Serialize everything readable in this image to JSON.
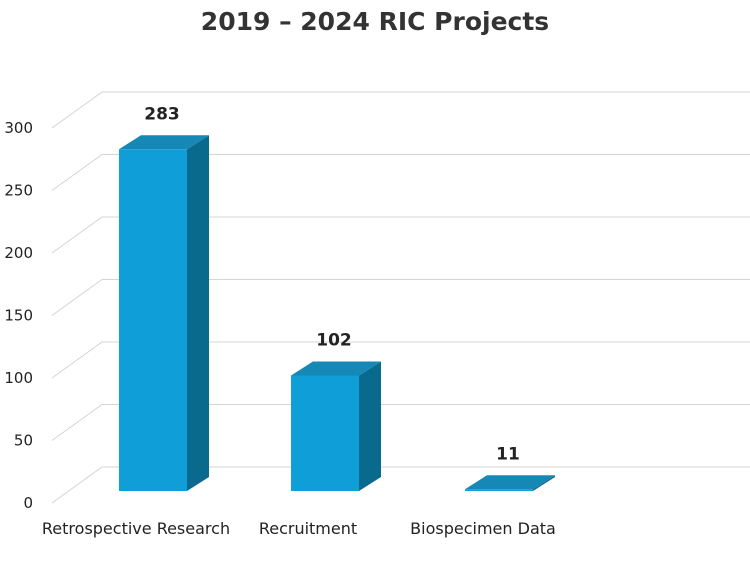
{
  "chart_data": {
    "type": "bar",
    "title": "2019 – 2024 RIC Projects",
    "categories": [
      "Retrospective Research",
      "Recruitment",
      "Biospecimen Data"
    ],
    "values": [
      283,
      102,
      11
    ],
    "data_labels": [
      "283",
      "102",
      "11"
    ],
    "ylim": [
      0,
      300
    ],
    "yticks": [
      "0",
      "50",
      "100",
      "150",
      "200",
      "250",
      "300"
    ],
    "grid": true,
    "style": "3d-column",
    "colors": {
      "front": "#0f9ed8",
      "side": "#0a6a8e",
      "top": "#1688b5"
    }
  }
}
